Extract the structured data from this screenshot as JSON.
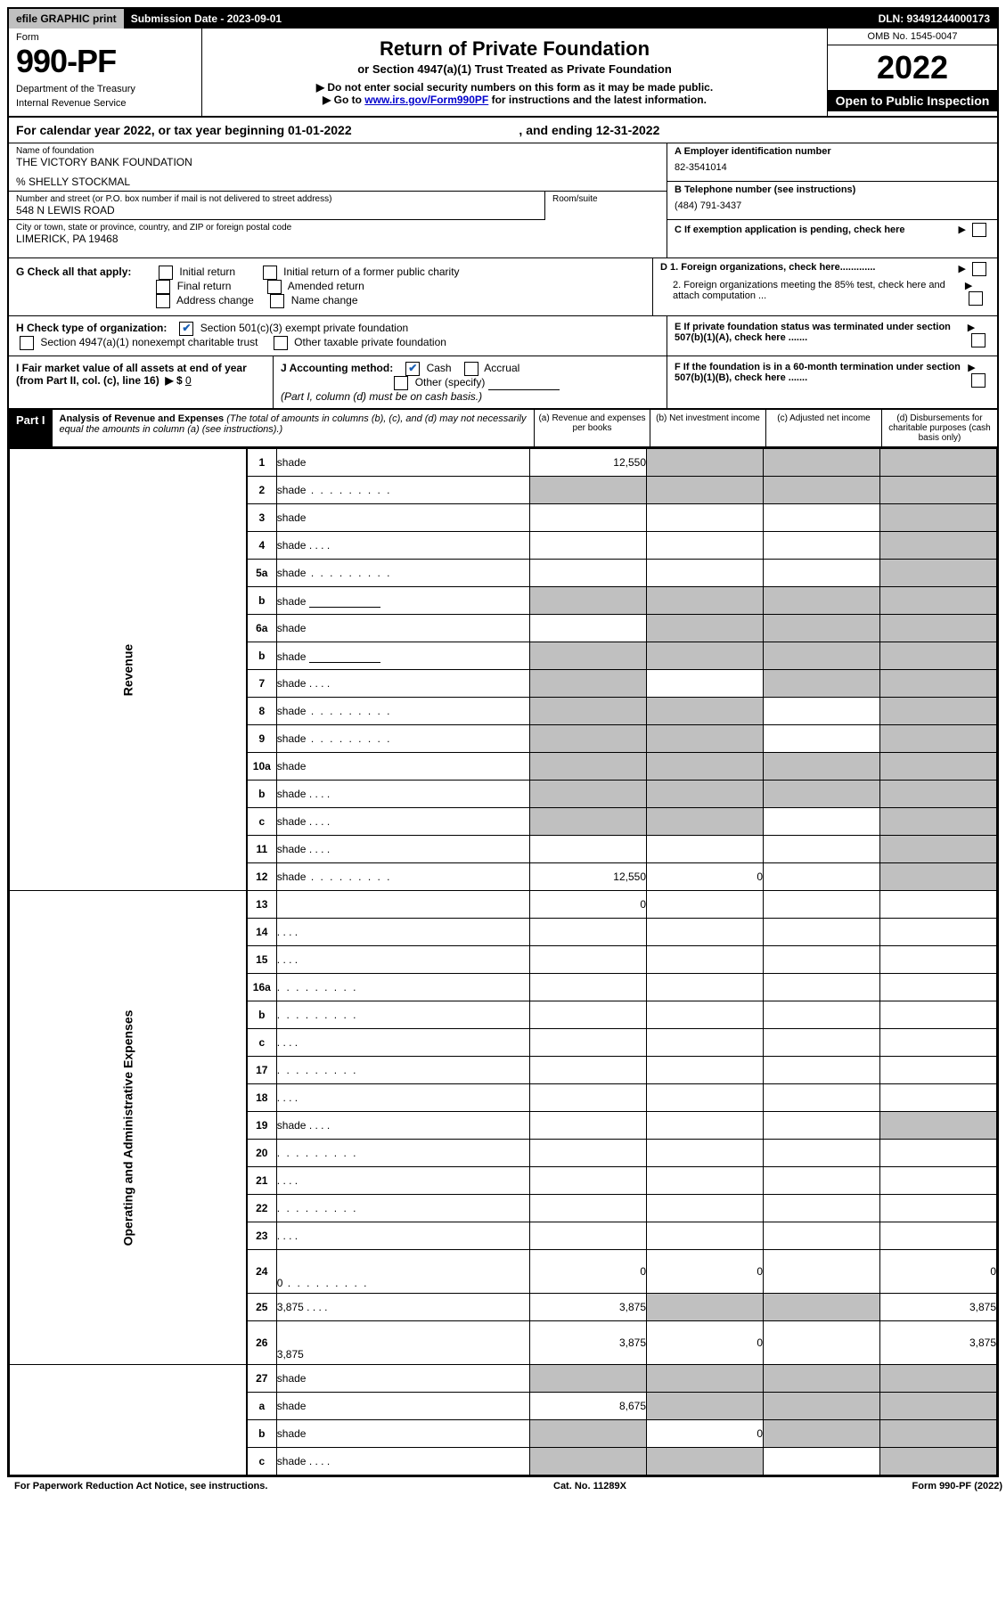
{
  "colors": {
    "black": "#000000",
    "white": "#ffffff",
    "gray_header": "#c0c0c0",
    "gray_shade": "#c0c0c0",
    "link": "#0000cc",
    "check_blue": "#1a5fb4"
  },
  "topbar": {
    "efile": "efile GRAPHIC print",
    "submission": "Submission Date - 2023-09-01",
    "dln": "DLN: 93491244000173"
  },
  "header": {
    "form_label": "Form",
    "form_number": "990-PF",
    "dept1": "Department of the Treasury",
    "dept2": "Internal Revenue Service",
    "title": "Return of Private Foundation",
    "subtitle": "or Section 4947(a)(1) Trust Treated as Private Foundation",
    "note1": "▶ Do not enter social security numbers on this form as it may be made public.",
    "note2_pre": "▶ Go to ",
    "note2_link": "www.irs.gov/Form990PF",
    "note2_post": " for instructions and the latest information.",
    "omb": "OMB No. 1545-0047",
    "year": "2022",
    "open": "Open to Public Inspection"
  },
  "cal_year": {
    "pre": "For calendar year 2022, or tax year beginning ",
    "begin": "01-01-2022",
    "mid": " , and ending ",
    "end": "12-31-2022"
  },
  "meta": {
    "name_label": "Name of foundation",
    "name": "THE VICTORY BANK FOUNDATION",
    "careof": "% SHELLY STOCKMAL",
    "addr_label": "Number and street (or P.O. box number if mail is not delivered to street address)",
    "addr": "548 N LEWIS ROAD",
    "room_label": "Room/suite",
    "room": "",
    "city_label": "City or town, state or province, country, and ZIP or foreign postal code",
    "city": "LIMERICK, PA  19468",
    "ein_label": "A Employer identification number",
    "ein": "82-3541014",
    "tel_label": "B Telephone number (see instructions)",
    "tel": "(484) 791-3437",
    "c_label": "C If exemption application is pending, check here",
    "d1": "D 1. Foreign organizations, check here.............",
    "d2": "2. Foreign organizations meeting the 85% test, check here and attach computation ...",
    "e_label": "E  If private foundation status was terminated under section 507(b)(1)(A), check here .......",
    "f_label": "F  If the foundation is in a 60-month termination under section 507(b)(1)(B), check here ......."
  },
  "g": {
    "label": "G Check all that apply:",
    "opts": [
      "Initial return",
      "Initial return of a former public charity",
      "Final return",
      "Amended return",
      "Address change",
      "Name change"
    ]
  },
  "h": {
    "label": "H Check type of organization:",
    "opt1": "Section 501(c)(3) exempt private foundation",
    "opt2": "Section 4947(a)(1) nonexempt charitable trust",
    "opt3": "Other taxable private foundation"
  },
  "i": {
    "label": "I Fair market value of all assets at end of year (from Part II, col. (c), line 16)",
    "prefix": "▶ $",
    "value": "0"
  },
  "j": {
    "label": "J Accounting method:",
    "cash": "Cash",
    "accrual": "Accrual",
    "other": "Other (specify)",
    "note": "(Part I, column (d) must be on cash basis.)"
  },
  "part1": {
    "label": "Part I",
    "title": "Analysis of Revenue and Expenses",
    "title_note": " (The total of amounts in columns (b), (c), and (d) may not necessarily equal the amounts in column (a) (see instructions).)",
    "col_a": "(a)  Revenue and expenses per books",
    "col_b": "(b)  Net investment income",
    "col_c": "(c)  Adjusted net income",
    "col_d": "(d)  Disbursements for charitable purposes (cash basis only)"
  },
  "side_labels": {
    "revenue": "Revenue",
    "op_exp": "Operating and Administrative Expenses"
  },
  "rows": [
    {
      "n": "1",
      "d": "shade",
      "a": "12,550",
      "b": "shade",
      "c": "shade"
    },
    {
      "n": "2",
      "d": "shade",
      "a": "shade",
      "b": "shade",
      "c": "shade",
      "dots": true
    },
    {
      "n": "3",
      "d": "shade",
      "a": "",
      "b": "",
      "c": ""
    },
    {
      "n": "4",
      "d": "shade",
      "a": "",
      "b": "",
      "c": "",
      "dots": "short"
    },
    {
      "n": "5a",
      "d": "shade",
      "a": "",
      "b": "",
      "c": "",
      "dots": true
    },
    {
      "n": "b",
      "d": "shade",
      "a": "shade",
      "b": "shade",
      "c": "shade",
      "inline_line": true
    },
    {
      "n": "6a",
      "d": "shade",
      "a": "",
      "b": "shade",
      "c": "shade"
    },
    {
      "n": "b",
      "d": "shade",
      "a": "shade",
      "b": "shade",
      "c": "shade",
      "inline_line": true
    },
    {
      "n": "7",
      "d": "shade",
      "a": "shade",
      "b": "",
      "c": "shade",
      "dots": "short"
    },
    {
      "n": "8",
      "d": "shade",
      "a": "shade",
      "b": "shade",
      "c": "",
      "dots": true
    },
    {
      "n": "9",
      "d": "shade",
      "a": "shade",
      "b": "shade",
      "c": "",
      "dots": true
    },
    {
      "n": "10a",
      "d": "shade",
      "a": "shade",
      "b": "shade",
      "c": "shade",
      "inline_box": true
    },
    {
      "n": "b",
      "d": "shade",
      "a": "shade",
      "b": "shade",
      "c": "shade",
      "dots": "short",
      "inline_box": true
    },
    {
      "n": "c",
      "d": "shade",
      "a": "shade",
      "b": "shade",
      "c": "",
      "dots": "short"
    },
    {
      "n": "11",
      "d": "shade",
      "a": "",
      "b": "",
      "c": "",
      "dots": "short"
    },
    {
      "n": "12",
      "d": "shade",
      "a": "12,550",
      "b": "0",
      "c": "",
      "dots": true
    }
  ],
  "exp_rows": [
    {
      "n": "13",
      "d": "",
      "a": "0",
      "b": "",
      "c": ""
    },
    {
      "n": "14",
      "d": "",
      "a": "",
      "b": "",
      "c": "",
      "dots": "short"
    },
    {
      "n": "15",
      "d": "",
      "a": "",
      "b": "",
      "c": "",
      "dots": "short"
    },
    {
      "n": "16a",
      "d": "",
      "a": "",
      "b": "",
      "c": "",
      "dots": true
    },
    {
      "n": "b",
      "d": "",
      "a": "",
      "b": "",
      "c": "",
      "dots": true
    },
    {
      "n": "c",
      "d": "",
      "a": "",
      "b": "",
      "c": "",
      "dots": "short"
    },
    {
      "n": "17",
      "d": "",
      "a": "",
      "b": "",
      "c": "",
      "dots": true
    },
    {
      "n": "18",
      "d": "",
      "a": "",
      "b": "",
      "c": "",
      "dots": "short"
    },
    {
      "n": "19",
      "d": "shade",
      "a": "",
      "b": "",
      "c": "",
      "dots": "short"
    },
    {
      "n": "20",
      "d": "",
      "a": "",
      "b": "",
      "c": "",
      "dots": true
    },
    {
      "n": "21",
      "d": "",
      "a": "",
      "b": "",
      "c": "",
      "dots": "short"
    },
    {
      "n": "22",
      "d": "",
      "a": "",
      "b": "",
      "c": "",
      "dots": true
    },
    {
      "n": "23",
      "d": "",
      "a": "",
      "b": "",
      "c": "",
      "dots": "short"
    },
    {
      "n": "24",
      "d": "0",
      "a": "0",
      "b": "0",
      "c": "",
      "dots": true,
      "tall": true
    },
    {
      "n": "25",
      "d": "3,875",
      "a": "3,875",
      "b": "shade",
      "c": "shade",
      "dots": "short"
    },
    {
      "n": "26",
      "d": "3,875",
      "a": "3,875",
      "b": "0",
      "c": "",
      "tall": true
    }
  ],
  "final_rows": [
    {
      "n": "27",
      "d": "shade",
      "a": "shade",
      "b": "shade",
      "c": "shade"
    },
    {
      "n": "a",
      "d": "shade",
      "a": "8,675",
      "b": "shade",
      "c": "shade"
    },
    {
      "n": "b",
      "d": "shade",
      "a": "shade",
      "b": "0",
      "c": "shade"
    },
    {
      "n": "c",
      "d": "shade",
      "a": "shade",
      "b": "shade",
      "c": "",
      "dots": "short"
    }
  ],
  "footer": {
    "left": "For Paperwork Reduction Act Notice, see instructions.",
    "mid": "Cat. No. 11289X",
    "right": "Form 990-PF (2022)"
  }
}
